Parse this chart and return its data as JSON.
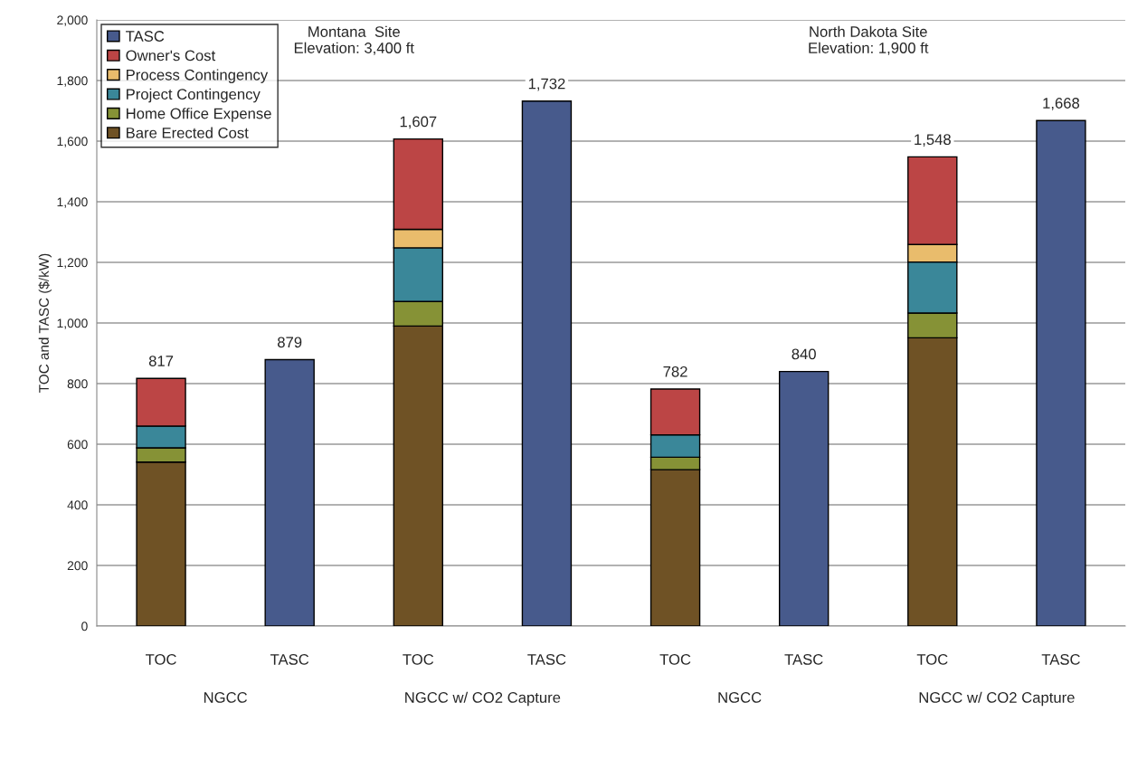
{
  "chart_data": {
    "type": "bar",
    "stacked": true,
    "categories": [
      "TOC",
      "TASC",
      "TOC",
      "TASC",
      "TOC",
      "TASC",
      "TOC",
      "TASC"
    ],
    "series": [
      {
        "name": "Bare Erected Cost",
        "color": "#6f5225",
        "values": [
          541,
          null,
          990,
          null,
          516,
          null,
          951,
          null
        ]
      },
      {
        "name": "Home Office Expense",
        "color": "#869236",
        "values": [
          47,
          null,
          81,
          null,
          41,
          null,
          82,
          null
        ]
      },
      {
        "name": "Project Contingency",
        "color": "#3a8799",
        "values": [
          72,
          null,
          177,
          null,
          74,
          null,
          168,
          null
        ]
      },
      {
        "name": "Process Contingency",
        "color": "#e9bc6c",
        "values": [
          0,
          null,
          61,
          null,
          0,
          null,
          58,
          null
        ]
      },
      {
        "name": "Owner's Cost",
        "color": "#bc4545",
        "values": [
          157,
          null,
          298,
          null,
          151,
          null,
          289,
          null
        ]
      },
      {
        "name": "TASC",
        "color": "#475a8c",
        "values": [
          null,
          879,
          null,
          1732,
          null,
          840,
          null,
          1668
        ]
      }
    ],
    "totals": [
      "817",
      "879",
      "1,607",
      "1,732",
      "782",
      "840",
      "1,548",
      "1,668"
    ],
    "ylabel": "TOC and TASC ($/kW)",
    "ylim": [
      0,
      2000
    ],
    "yticks": [
      0,
      200,
      400,
      600,
      800,
      {
        "value": 1000,
        "label": "1,000"
      },
      {
        "value": 1200,
        "label": "1,200"
      },
      {
        "value": 1400,
        "label": "1,400"
      },
      {
        "value": 1600,
        "label": "1,600"
      },
      {
        "value": 1800,
        "label": "1,800"
      },
      {
        "value": 2000,
        "label": "2,000"
      }
    ],
    "grid": "y",
    "legend": "top left",
    "annotations": [
      "Montana  Site\nElevation: 3,400 ft",
      "North Dakota Site\nElevation: 1,900 ft",
      "NGCC",
      "NGCC w/ CO2 Capture",
      "NGCC",
      "NGCC w/ CO2 Capture"
    ]
  }
}
